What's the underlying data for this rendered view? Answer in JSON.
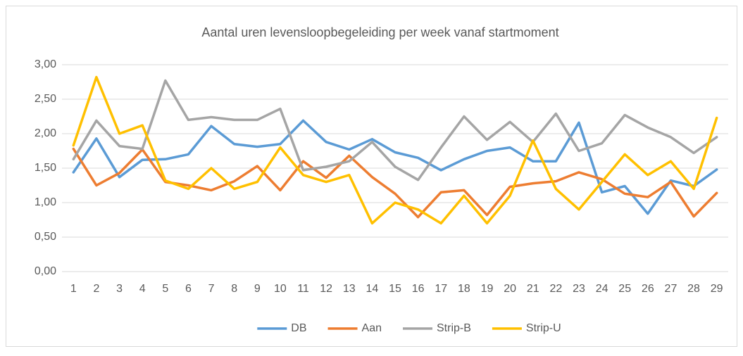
{
  "chart_data": {
    "type": "line",
    "title": "Aantal uren levensloopbegeleiding per week vanaf startmoment",
    "categories": [
      "1",
      "2",
      "3",
      "4",
      "5",
      "6",
      "7",
      "8",
      "9",
      "10",
      "11",
      "12",
      "13",
      "14",
      "15",
      "16",
      "17",
      "18",
      "19",
      "20",
      "21",
      "22",
      "23",
      "24",
      "25",
      "26",
      "27",
      "28",
      "29"
    ],
    "series": [
      {
        "name": "DB",
        "color": "#5b9bd5",
        "values": [
          1.44,
          1.93,
          1.37,
          1.62,
          1.63,
          1.7,
          2.11,
          1.85,
          1.81,
          1.85,
          2.19,
          1.88,
          1.77,
          1.92,
          1.73,
          1.65,
          1.47,
          1.63,
          1.75,
          1.8,
          1.6,
          1.6,
          2.16,
          1.15,
          1.24,
          0.84,
          1.32,
          1.24,
          1.48
        ]
      },
      {
        "name": "Aan",
        "color": "#ed7d31",
        "values": [
          1.78,
          1.25,
          1.43,
          1.77,
          1.3,
          1.25,
          1.18,
          1.31,
          1.53,
          1.18,
          1.6,
          1.36,
          1.68,
          1.37,
          1.13,
          0.79,
          1.15,
          1.18,
          0.82,
          1.23,
          1.28,
          1.31,
          1.44,
          1.34,
          1.13,
          1.08,
          1.3,
          0.8,
          1.14
        ]
      },
      {
        "name": "Strip-B",
        "color": "#a5a5a5",
        "values": [
          1.63,
          2.19,
          1.82,
          1.78,
          2.77,
          2.2,
          2.24,
          2.2,
          2.2,
          2.36,
          1.47,
          1.52,
          1.6,
          1.88,
          1.52,
          1.33,
          1.8,
          2.25,
          1.91,
          2.17,
          1.88,
          2.29,
          1.75,
          1.86,
          2.27,
          2.09,
          1.95,
          1.72,
          1.95
        ]
      },
      {
        "name": "Strip-U",
        "color": "#ffc000",
        "values": [
          1.83,
          2.82,
          2.0,
          2.12,
          1.32,
          1.2,
          1.5,
          1.2,
          1.3,
          1.8,
          1.4,
          1.3,
          1.4,
          0.7,
          1.0,
          0.9,
          0.7,
          1.1,
          0.7,
          1.1,
          1.9,
          1.2,
          0.9,
          1.3,
          1.7,
          1.4,
          1.6,
          1.2,
          2.23
        ]
      }
    ],
    "ylim": [
      0,
      3
    ],
    "yticks": [
      {
        "value": 0,
        "label": "0,00"
      },
      {
        "value": 0.5,
        "label": "0,50"
      },
      {
        "value": 1,
        "label": "1,00"
      },
      {
        "value": 1.5,
        "label": "1,50"
      },
      {
        "value": 2,
        "label": "2,00"
      },
      {
        "value": 2.5,
        "label": "2,50"
      },
      {
        "value": 3,
        "label": "3,00"
      }
    ],
    "grid": true,
    "legend": "bottom"
  }
}
